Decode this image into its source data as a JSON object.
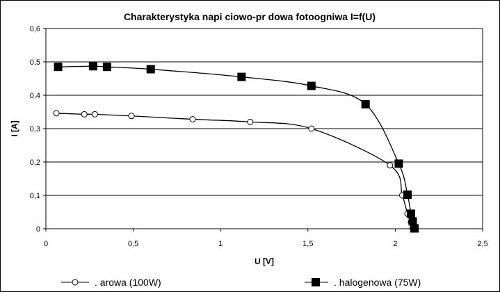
{
  "chart_data": {
    "type": "line",
    "title": "Charakterystyka napi  ciowo-pr  dowa fotoogniwa I=f(U)",
    "xlabel": "U [V]",
    "ylabel": "I [A]",
    "xlim": [
      0,
      2.5
    ],
    "ylim": [
      0,
      0.6
    ],
    "x_ticks": [
      0,
      0.5,
      1,
      1.5,
      2,
      2.5
    ],
    "x_tick_labels": [
      "0",
      "0,5",
      "1",
      "1,5",
      "2",
      "2,5"
    ],
    "y_ticks": [
      0,
      0.1,
      0.2,
      0.3,
      0.4,
      0.5,
      0.6
    ],
    "y_tick_labels": [
      "0",
      "0,1",
      "0,2",
      "0,3",
      "0,4",
      "0,5",
      "0,6"
    ],
    "grid": "horizontal",
    "legend_position": "bottom",
    "series": [
      {
        "name": ".   arowa (100W)",
        "marker": "circle-open",
        "color": "#000000",
        "points": [
          [
            0.06,
            0.346
          ],
          [
            0.22,
            0.343
          ],
          [
            0.28,
            0.343
          ],
          [
            0.49,
            0.338
          ],
          [
            0.84,
            0.328
          ],
          [
            1.17,
            0.32
          ],
          [
            1.52,
            0.3
          ],
          [
            1.97,
            0.19
          ],
          [
            2.04,
            0.1
          ],
          [
            2.07,
            0.045
          ],
          [
            2.09,
            0.02
          ],
          [
            2.1,
            0.001
          ]
        ]
      },
      {
        "name": ". halogenowa (75W)",
        "marker": "square-filled",
        "color": "#000000",
        "points": [
          [
            0.07,
            0.485
          ],
          [
            0.27,
            0.487
          ],
          [
            0.35,
            0.485
          ],
          [
            0.6,
            0.478
          ],
          [
            1.12,
            0.455
          ],
          [
            1.52,
            0.428
          ],
          [
            1.83,
            0.373
          ],
          [
            2.02,
            0.195
          ],
          [
            2.07,
            0.102
          ],
          [
            2.09,
            0.045
          ],
          [
            2.1,
            0.022
          ],
          [
            2.11,
            0.001
          ]
        ]
      }
    ]
  }
}
